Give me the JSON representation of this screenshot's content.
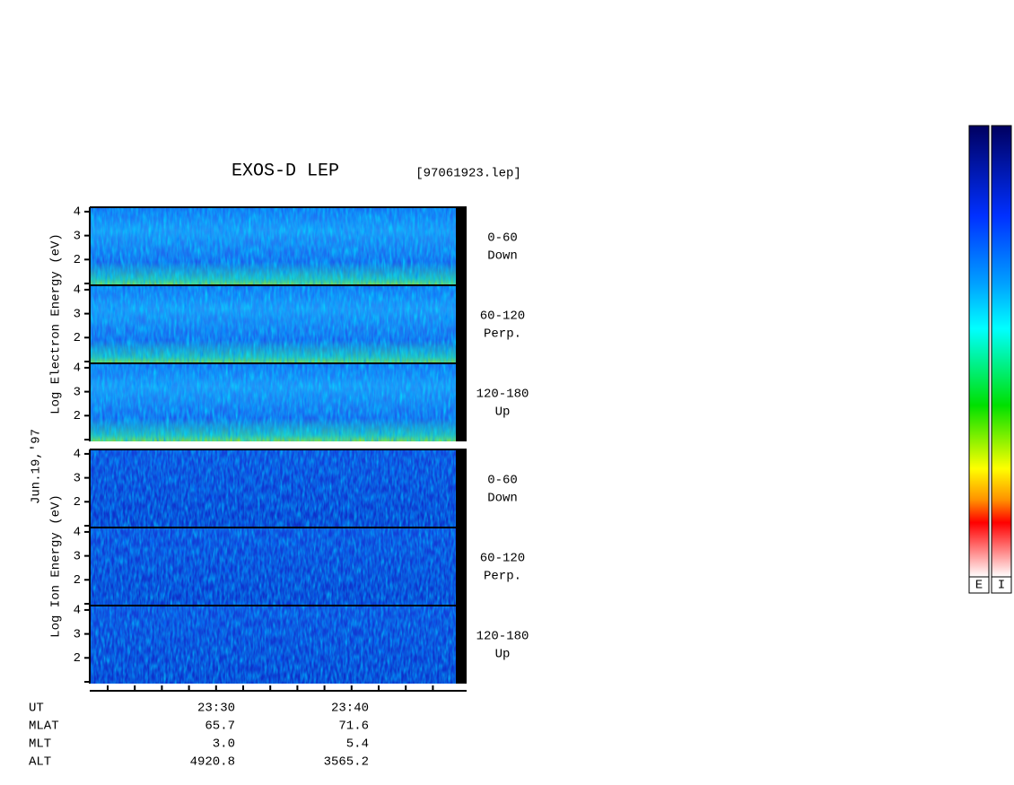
{
  "header": {
    "title": "EXOS-D LEP",
    "file": "[97061923.lep]"
  },
  "date": "Jun.19,'97",
  "electron_axis_label": "Log  Electron  Energy (eV)",
  "ion_axis_label": "Log  Ion  Energy (eV)",
  "yticks": [
    4,
    3,
    2
  ],
  "panels": [
    {
      "species": "electron",
      "range": "0-60",
      "direction": "Down"
    },
    {
      "species": "electron",
      "range": "60-120",
      "direction": "Perp."
    },
    {
      "species": "electron",
      "range": "120-180",
      "direction": "Up"
    },
    {
      "species": "ion",
      "range": "0-60",
      "direction": "Down"
    },
    {
      "species": "ion",
      "range": "60-120",
      "direction": "Perp."
    },
    {
      "species": "ion",
      "range": "120-180",
      "direction": "Up"
    }
  ],
  "ephemeris": [
    {
      "label": "UT",
      "values": [
        "23:30",
        "23:40"
      ]
    },
    {
      "label": "MLAT",
      "values": [
        "65.7",
        "71.6"
      ]
    },
    {
      "label": "MLT",
      "values": [
        "3.0",
        "5.4"
      ]
    },
    {
      "label": "ALT",
      "values": [
        "4920.8",
        "3565.2"
      ]
    }
  ],
  "colorbars": [
    "E",
    "I"
  ]
}
